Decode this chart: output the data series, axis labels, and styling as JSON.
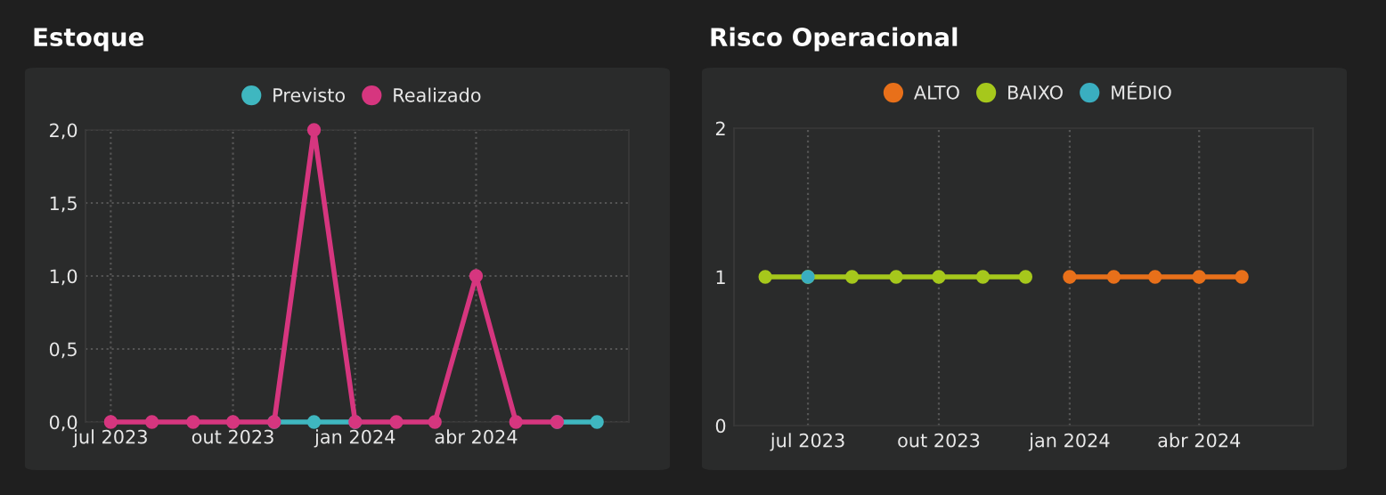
{
  "chart_data": [
    {
      "type": "line",
      "title": "Estoque",
      "x": [
        "2023-07",
        "2023-08",
        "2023-09",
        "2023-10",
        "2023-11",
        "2023-12",
        "2024-01",
        "2024-02",
        "2024-03",
        "2024-04",
        "2024-05",
        "2024-06",
        "2024-07"
      ],
      "series": [
        {
          "name": "Previsto",
          "color": "#3fb7c0",
          "values": [
            null,
            null,
            null,
            null,
            0,
            0,
            0,
            null,
            null,
            null,
            null,
            0,
            0
          ]
        },
        {
          "name": "Realizado",
          "color": "#d6367f",
          "values": [
            0,
            0,
            0,
            0,
            0,
            2,
            0,
            0,
            0,
            1,
            0,
            0,
            null
          ]
        }
      ],
      "xlim": [
        "2023-06-12",
        "2024-07-25"
      ],
      "xticks": [
        {
          "value": "2023-07",
          "label": "jul 2023"
        },
        {
          "value": "2023-10",
          "label": "out 2023"
        },
        {
          "value": "2024-01",
          "label": "jan 2024"
        },
        {
          "value": "2024-04",
          "label": "abr 2024"
        }
      ],
      "ylim": [
        0,
        2
      ],
      "yticks": [
        {
          "value": 0,
          "label": "0,0"
        },
        {
          "value": 0.5,
          "label": "0,5"
        },
        {
          "value": 1,
          "label": "1,0"
        },
        {
          "value": 1.5,
          "label": "1,5"
        },
        {
          "value": 2,
          "label": "2,0"
        }
      ],
      "grid": true,
      "legend": "top",
      "marker": "circle",
      "line_style": "solid"
    },
    {
      "type": "line",
      "title": "Risco Operacional",
      "x": [
        "2023-06",
        "2023-07",
        "2023-08",
        "2023-09",
        "2023-10",
        "2023-11",
        "2023-12",
        "2024-01",
        "2024-02",
        "2024-03",
        "2024-04",
        "2024-05"
      ],
      "series": [
        {
          "name": "ALTO",
          "color": "#e8701a",
          "values": [
            null,
            null,
            null,
            null,
            null,
            null,
            null,
            1,
            1,
            1,
            1,
            1
          ]
        },
        {
          "name": "BAIXO",
          "color": "#a6c81c",
          "values": [
            1,
            1,
            1,
            1,
            1,
            1,
            1,
            null,
            null,
            null,
            null,
            null
          ]
        },
        {
          "name": "MÉDIO",
          "color": "#3aaec0",
          "values": [
            null,
            1,
            null,
            null,
            null,
            null,
            null,
            null,
            null,
            null,
            null,
            null
          ]
        }
      ],
      "xlim": [
        "2023-05-10",
        "2024-06-20"
      ],
      "xticks": [
        {
          "value": "2023-07",
          "label": "jul 2023"
        },
        {
          "value": "2023-10",
          "label": "out 2023"
        },
        {
          "value": "2024-01",
          "label": "jan 2024"
        },
        {
          "value": "2024-04",
          "label": "abr 2024"
        }
      ],
      "ylim": [
        0,
        2
      ],
      "yticks": [
        0,
        1,
        2
      ],
      "grid": "x",
      "legend": "top",
      "marker": "circle",
      "line_style": "solid"
    }
  ]
}
